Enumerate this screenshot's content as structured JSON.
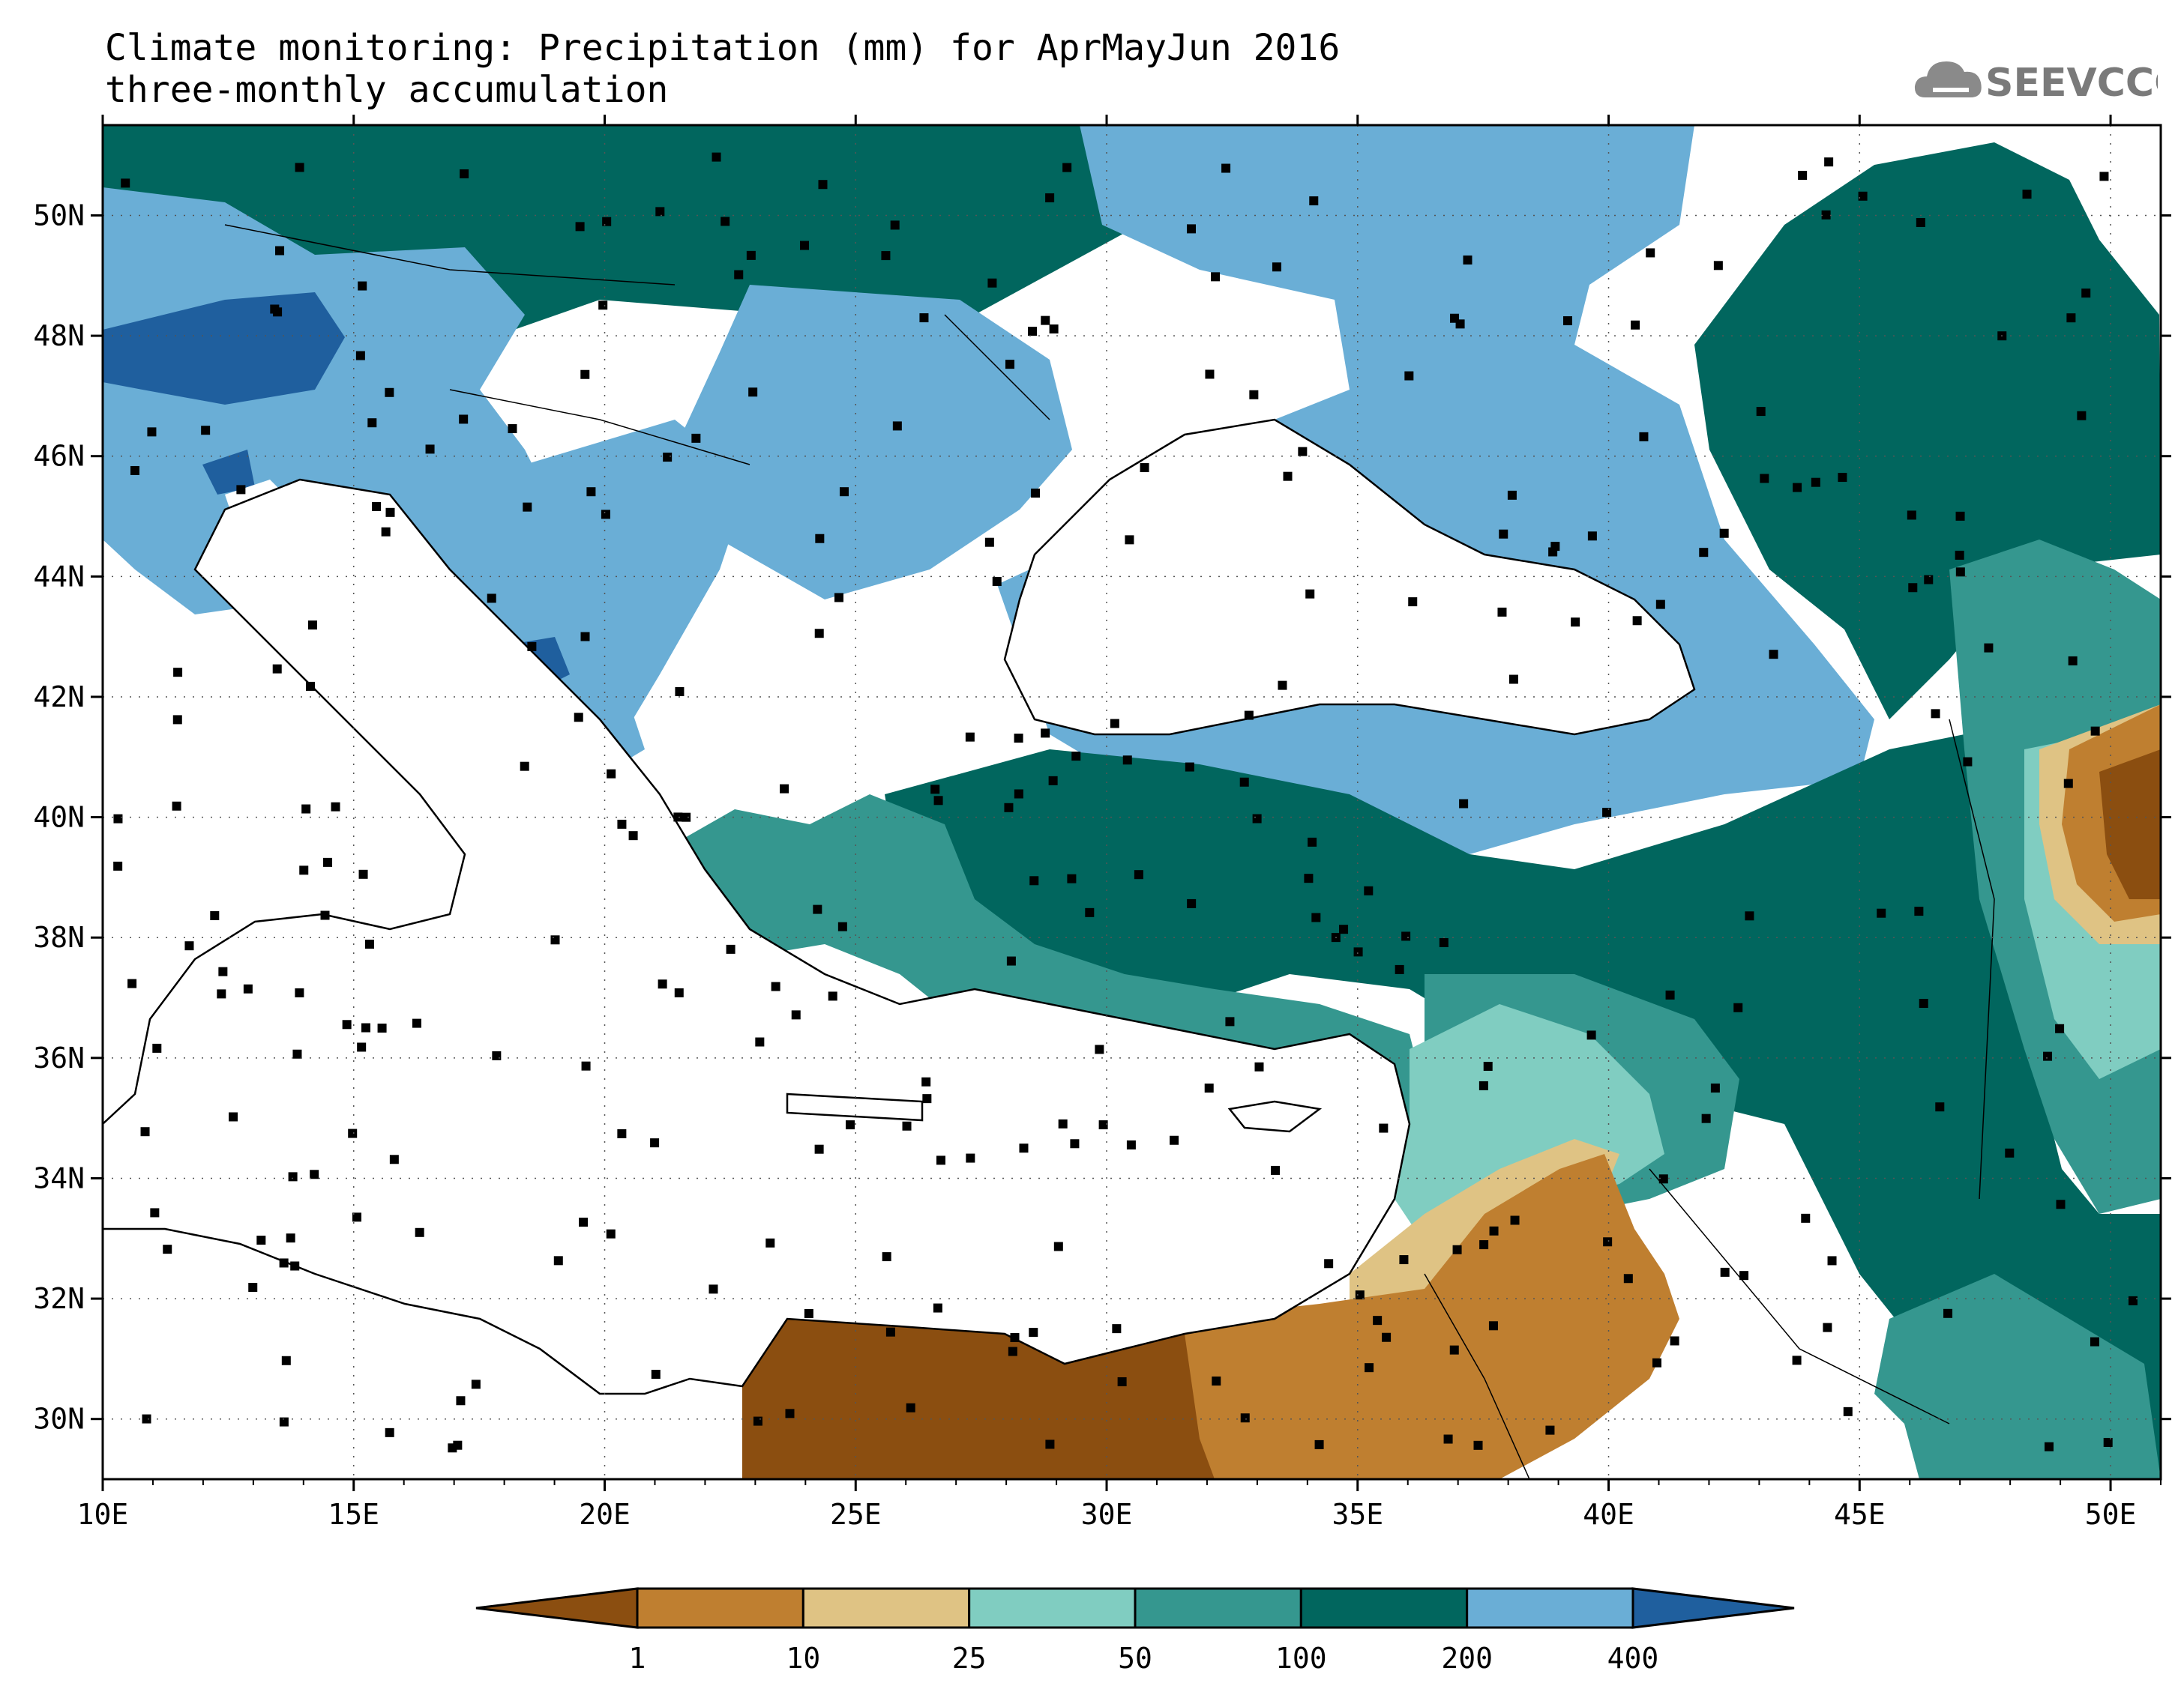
{
  "header": {
    "title_line1": "Climate monitoring: Precipitation (mm) for AprMayJun 2016",
    "title_line2": "three-monthly accumulation",
    "logo_text": "SEEVCCC"
  },
  "map": {
    "lon_range": [
      10,
      51
    ],
    "lat_range": [
      29,
      51.5
    ],
    "x_ticks": [
      "10E",
      "15E",
      "20E",
      "25E",
      "30E",
      "35E",
      "40E",
      "45E",
      "50E"
    ],
    "y_ticks": [
      "30N",
      "32N",
      "34N",
      "36N",
      "38N",
      "40N",
      "42N",
      "44N",
      "46N",
      "48N",
      "50N"
    ]
  },
  "colorbar": {
    "labels": [
      "1",
      "10",
      "25",
      "50",
      "100",
      "200",
      "400"
    ],
    "colors": [
      "#8b4e10",
      "#bf7f30",
      "#dfc384",
      "#80cdc1",
      "#35978f",
      "#01665e",
      "#6aaed6",
      "#1f5f9e"
    ]
  },
  "colors": {
    "dry_brown": "#8b4e10",
    "brown": "#bf7f30",
    "tan": "#dfc384",
    "light_teal": "#80cdc1",
    "teal": "#35978f",
    "dark_teal": "#01665e",
    "light_blue": "#6aaed6",
    "dark_blue": "#1f5f9e"
  }
}
